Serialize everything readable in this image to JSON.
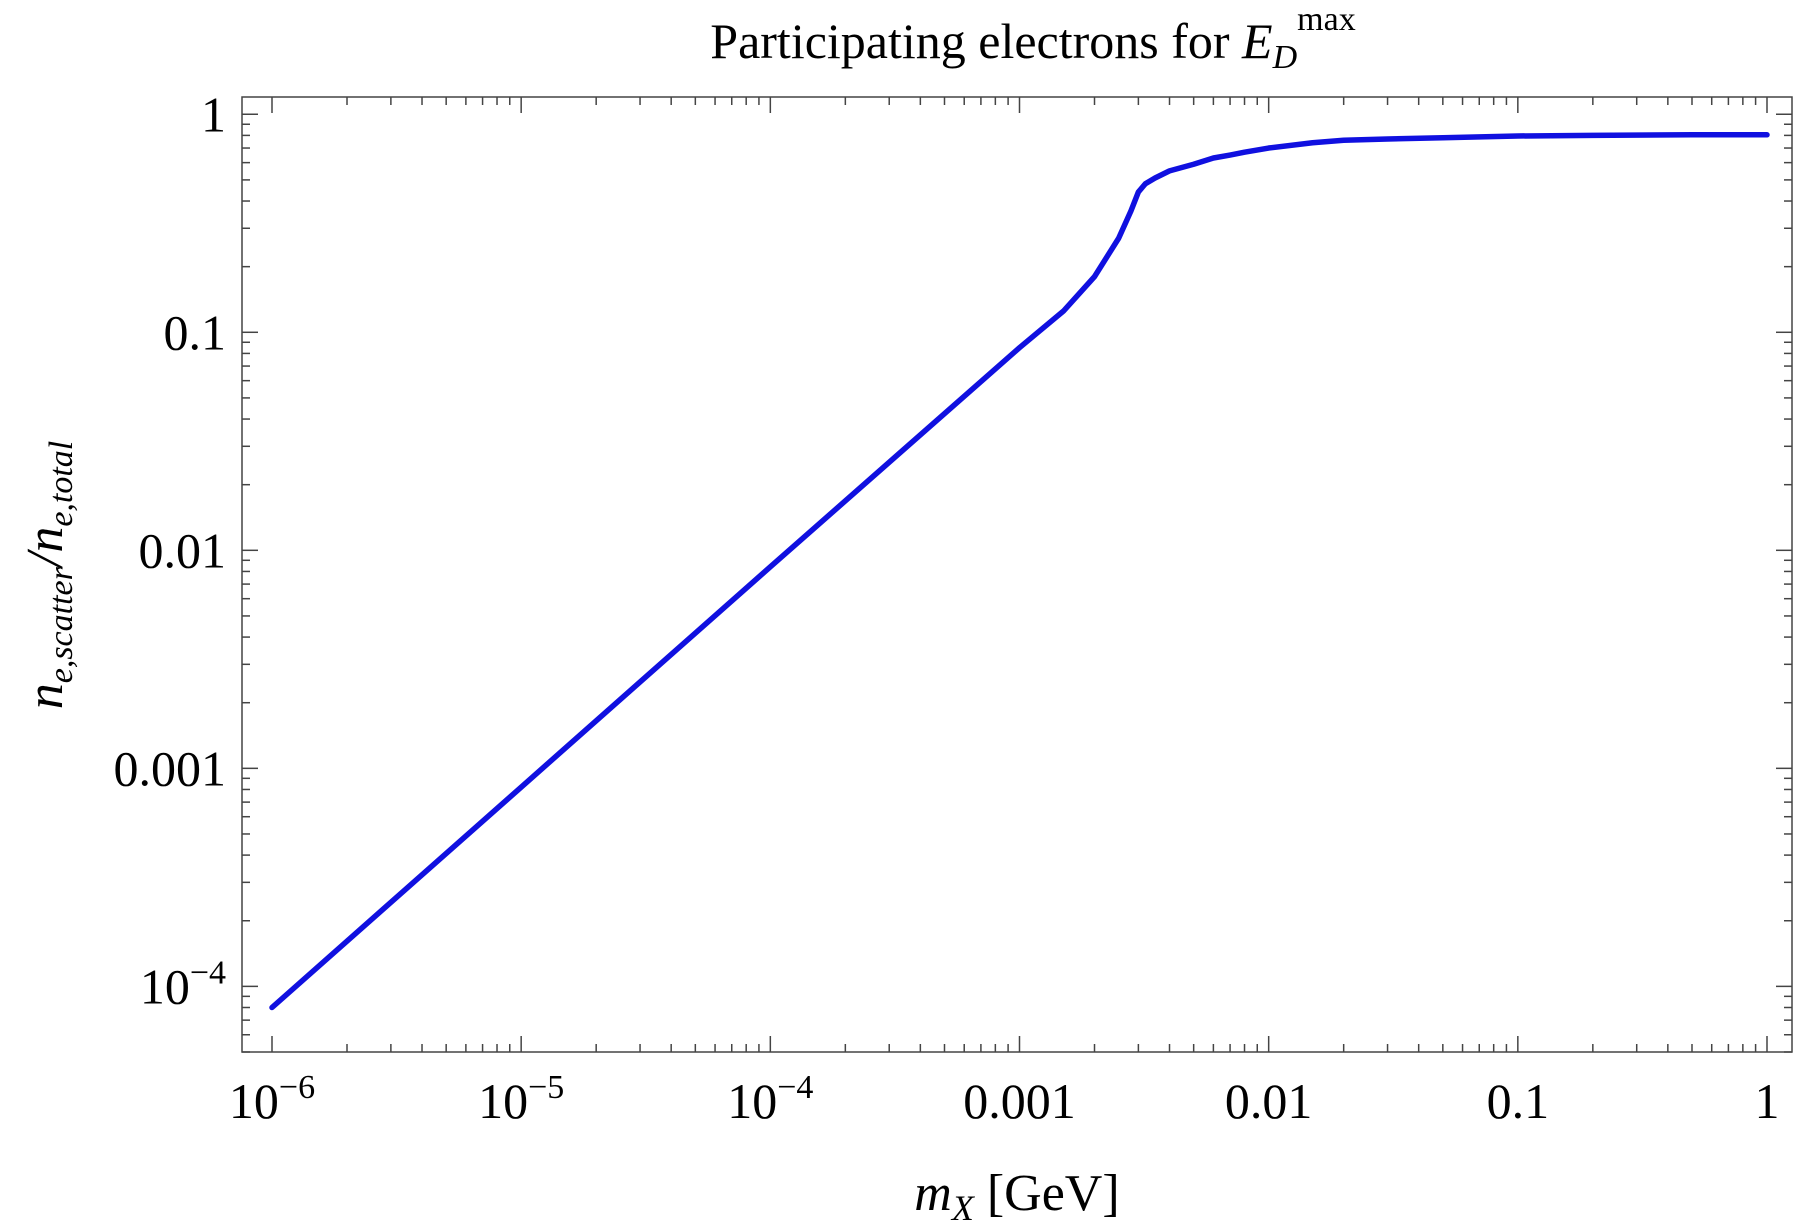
{
  "chart_data": {
    "type": "line",
    "title": "Participating electrons for E_D^max",
    "title_parts": {
      "prefix": "Participating electrons for ",
      "var": "E",
      "sub": "D",
      "sup": "max"
    },
    "xlabel": "m_X [GeV]",
    "xlabel_parts": {
      "var": "m",
      "sub": "X",
      "unit": " [GeV]"
    },
    "ylabel": "n_e,scatter/n_e,total",
    "ylabel_parts": {
      "var1": "n",
      "sub1": "e,scatter",
      "slash": "/",
      "var2": "n",
      "sub2": "e,total"
    },
    "x_scale": "log",
    "y_scale": "log",
    "xlim": [
      1e-06,
      1
    ],
    "ylim": [
      5e-05,
      1.2
    ],
    "x_ticks": [
      {
        "value": 1e-06,
        "base": "10",
        "exp": "−6"
      },
      {
        "value": 1e-05,
        "base": "10",
        "exp": "−5"
      },
      {
        "value": 0.0001,
        "base": "10",
        "exp": "−4"
      },
      {
        "value": 0.001,
        "label": "0.001"
      },
      {
        "value": 0.01,
        "label": "0.01"
      },
      {
        "value": 0.1,
        "label": "0.1"
      },
      {
        "value": 1,
        "label": "1"
      }
    ],
    "y_ticks": [
      {
        "value": 0.0001,
        "base": "10",
        "exp": "−4"
      },
      {
        "value": 0.001,
        "label": "0.001"
      },
      {
        "value": 0.01,
        "label": "0.01"
      },
      {
        "value": 0.1,
        "label": "0.1"
      },
      {
        "value": 1,
        "label": "1"
      }
    ],
    "grid": false,
    "series": [
      {
        "name": "n_e,scatter/n_e,total",
        "color": "#1010e0",
        "x": [
          1e-06,
          1e-05,
          0.0001,
          0.001,
          0.0015,
          0.002,
          0.0025,
          0.0028,
          0.003,
          0.0032,
          0.0035,
          0.004,
          0.005,
          0.006,
          0.007,
          0.008,
          0.01,
          0.015,
          0.02,
          0.03,
          0.05,
          0.1,
          0.2,
          0.5,
          1
        ],
        "y": [
          8e-05,
          0.00082,
          0.0084,
          0.085,
          0.125,
          0.18,
          0.27,
          0.36,
          0.44,
          0.48,
          0.51,
          0.55,
          0.59,
          0.63,
          0.65,
          0.67,
          0.7,
          0.74,
          0.76,
          0.77,
          0.78,
          0.795,
          0.8,
          0.805,
          0.805
        ]
      }
    ]
  }
}
